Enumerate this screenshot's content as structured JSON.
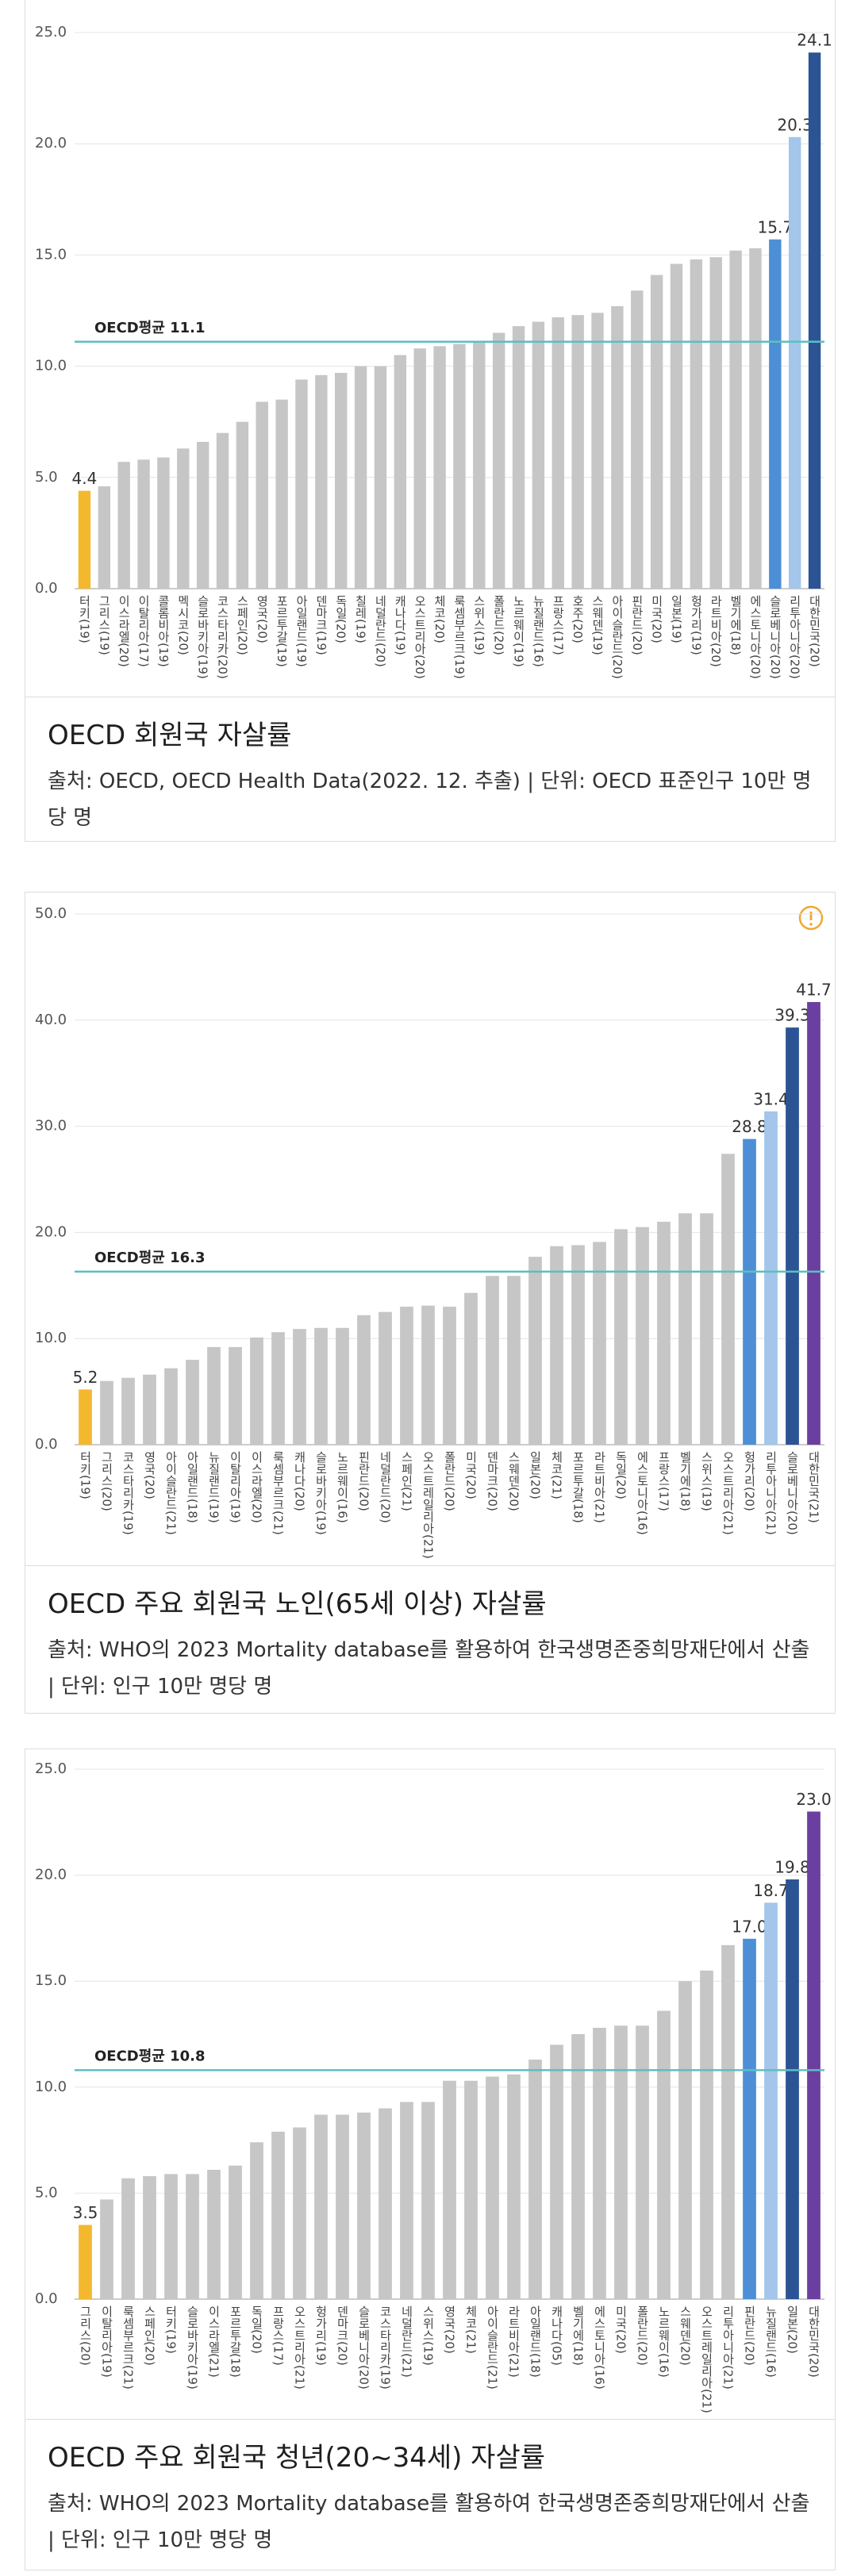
{
  "chart_data": [
    {
      "type": "bar",
      "title": "OECD 회원국 자살률",
      "source": "출처: OECD, OECD Health Data(2022. 12. 추출) | 단위: OECD 표준인구 10만 명당 명",
      "categories": [
        "터키(19)",
        "그리스(19)",
        "이스라엘(20)",
        "이탈리아(17)",
        "콜롬비아(19)",
        "멕시코(20)",
        "슬로바키아(19)",
        "코스타리카(20)",
        "스페인(20)",
        "영국(20)",
        "포르투갈(19)",
        "아일랜드(19)",
        "덴마크(19)",
        "독일(20)",
        "칠레(19)",
        "네덜란드(20)",
        "캐나다(19)",
        "오스트리아(20)",
        "체코(20)",
        "룩셈부르크(19)",
        "스위스(19)",
        "폴란드(20)",
        "노르웨이(19)",
        "뉴질랜드(16)",
        "프랑스(17)",
        "호주(20)",
        "스웨덴(19)",
        "아이슬란드(20)",
        "핀란드(20)",
        "미국(20)",
        "일본(19)",
        "헝가리(19)",
        "라트비아(20)",
        "벨기에(18)",
        "에스토니아(20)",
        "슬로베니아(20)",
        "리투아니아(20)",
        "대한민국(20)"
      ],
      "values": [
        4.4,
        4.6,
        5.7,
        5.8,
        5.9,
        6.3,
        6.6,
        7.0,
        7.5,
        8.4,
        8.5,
        9.4,
        9.6,
        9.7,
        10.0,
        10.0,
        10.5,
        10.8,
        10.9,
        11.0,
        11.1,
        11.5,
        11.8,
        12.0,
        12.2,
        12.3,
        12.4,
        12.7,
        13.4,
        14.1,
        14.6,
        14.8,
        14.9,
        15.2,
        15.3,
        15.7,
        20.3,
        24.1
      ],
      "value_labels": [
        "4.4",
        null,
        null,
        null,
        null,
        null,
        null,
        null,
        null,
        null,
        null,
        null,
        null,
        null,
        null,
        null,
        null,
        null,
        null,
        null,
        null,
        null,
        null,
        null,
        null,
        null,
        null,
        null,
        null,
        null,
        null,
        null,
        null,
        null,
        null,
        "15.7",
        "20.3",
        "24.1"
      ],
      "colors": [
        "#f4b82f",
        "#c6c6c6",
        "#c6c6c6",
        "#c6c6c6",
        "#c6c6c6",
        "#c6c6c6",
        "#c6c6c6",
        "#c6c6c6",
        "#c6c6c6",
        "#c6c6c6",
        "#c6c6c6",
        "#c6c6c6",
        "#c6c6c6",
        "#c6c6c6",
        "#c6c6c6",
        "#c6c6c6",
        "#c6c6c6",
        "#c6c6c6",
        "#c6c6c6",
        "#c6c6c6",
        "#c6c6c6",
        "#c6c6c6",
        "#c6c6c6",
        "#c6c6c6",
        "#c6c6c6",
        "#c6c6c6",
        "#c6c6c6",
        "#c6c6c6",
        "#c6c6c6",
        "#c6c6c6",
        "#c6c6c6",
        "#c6c6c6",
        "#c6c6c6",
        "#c6c6c6",
        "#c6c6c6",
        "#4d8fd6",
        "#a3c6ea",
        "#2c5494"
      ],
      "average": {
        "label": "OECD평균 11.1",
        "value": 11.1
      },
      "ylim": [
        0,
        25
      ],
      "yticks": [
        {
          "value": 0,
          "label": "0.0"
        },
        {
          "value": 5,
          "label": "5.0"
        },
        {
          "value": 10,
          "label": "10.0"
        },
        {
          "value": 15,
          "label": "15.0"
        },
        {
          "value": 20,
          "label": "20.0"
        },
        {
          "value": 25,
          "label": "25.0"
        }
      ],
      "grid": true
    },
    {
      "type": "bar",
      "title": "OECD 주요 회원국 노인(65세 이상) 자살률",
      "source": "출처: WHO의 2023 Mortality database를 활용하여 한국생명존중희망재단에서 산출 | 단위: 인구 10만 명당 명",
      "categories": [
        "터키(19)",
        "그리스(20)",
        "코스타리카(19)",
        "영국(20)",
        "아이슬란드(21)",
        "아일랜드(18)",
        "뉴질랜드(19)",
        "이탈리아(19)",
        "이스라엘(20)",
        "룩셈부르크(21)",
        "캐나다(20)",
        "슬로바키아(19)",
        "노르웨이(16)",
        "핀란드(20)",
        "네덜란드(20)",
        "스페인(21)",
        "오스트레일리아(21)",
        "폴란드(20)",
        "미국(20)",
        "덴마크(20)",
        "스웨덴(20)",
        "일본(20)",
        "체코(21)",
        "포르투갈(18)",
        "라트비아(21)",
        "독일(20)",
        "에스토니아(16)",
        "프랑스(17)",
        "벨기에(18)",
        "스위스(19)",
        "오스트리아(21)",
        "헝가리(20)",
        "리투아니아(21)",
        "슬로베니아(20)",
        "대한민국(21)"
      ],
      "values": [
        5.2,
        6.0,
        6.3,
        6.6,
        7.2,
        8.0,
        9.2,
        9.2,
        10.1,
        10.6,
        10.9,
        11.0,
        11.0,
        12.2,
        12.5,
        13.0,
        13.1,
        13.0,
        14.3,
        15.9,
        15.9,
        17.7,
        18.7,
        18.8,
        19.1,
        20.3,
        20.5,
        21.0,
        21.8,
        21.8,
        27.4,
        28.8,
        31.4,
        39.3,
        41.7
      ],
      "value_labels": [
        "5.2",
        null,
        null,
        null,
        null,
        null,
        null,
        null,
        null,
        null,
        null,
        null,
        null,
        null,
        null,
        null,
        null,
        null,
        null,
        null,
        null,
        null,
        null,
        null,
        null,
        null,
        null,
        null,
        null,
        null,
        null,
        "28.8",
        "31.4",
        "39.3",
        "41.7"
      ],
      "colors": [
        "#f4b82f",
        "#c6c6c6",
        "#c6c6c6",
        "#c6c6c6",
        "#c6c6c6",
        "#c6c6c6",
        "#c6c6c6",
        "#c6c6c6",
        "#c6c6c6",
        "#c6c6c6",
        "#c6c6c6",
        "#c6c6c6",
        "#c6c6c6",
        "#c6c6c6",
        "#c6c6c6",
        "#c6c6c6",
        "#c6c6c6",
        "#c6c6c6",
        "#c6c6c6",
        "#c6c6c6",
        "#c6c6c6",
        "#c6c6c6",
        "#c6c6c6",
        "#c6c6c6",
        "#c6c6c6",
        "#c6c6c6",
        "#c6c6c6",
        "#c6c6c6",
        "#c6c6c6",
        "#c6c6c6",
        "#c6c6c6",
        "#4d8fd6",
        "#a3c6ea",
        "#2c5494",
        "#6b3fa0"
      ],
      "average": {
        "label": "OECD평균 16.3",
        "value": 16.3
      },
      "ylim": [
        0,
        50
      ],
      "yticks": [
        {
          "value": 0,
          "label": "0.0"
        },
        {
          "value": 10,
          "label": "10.0"
        },
        {
          "value": 20,
          "label": "20.0"
        },
        {
          "value": 30,
          "label": "30.0"
        },
        {
          "value": 40,
          "label": "40.0"
        },
        {
          "value": 50,
          "label": "50.0"
        }
      ],
      "grid": true
    },
    {
      "type": "bar",
      "title": "OECD 주요 회원국 청년(20~34세) 자살률",
      "source": "출처: WHO의 2023 Mortality database를 활용하여 한국생명존중희망재단에서 산출 | 단위: 인구 10만 명당 명",
      "categories": [
        "그리스(20)",
        "이탈리아(19)",
        "룩셈부르크(21)",
        "스페인(20)",
        "터키(19)",
        "슬로바키아(19)",
        "이스라엘(21)",
        "포르투갈(18)",
        "독일(20)",
        "프랑스(17)",
        "오스트리아(21)",
        "헝가리(19)",
        "덴마크(20)",
        "슬로베니아(20)",
        "코스타리카(19)",
        "네덜란드(21)",
        "스위스(19)",
        "영국(20)",
        "체코(21)",
        "아이슬란드(21)",
        "라트비아(21)",
        "아일랜드(18)",
        "캐나다(05)",
        "벨기에(18)",
        "에스토니아(16)",
        "미국(20)",
        "폴란드(20)",
        "노르웨이(16)",
        "스웨덴(20)",
        "오스트레일리아(21)",
        "리투아니아(21)",
        "핀란드(20)",
        "뉴질랜드(16)",
        "일본(20)",
        "대한민국(20)"
      ],
      "values": [
        3.5,
        4.7,
        5.7,
        5.8,
        5.9,
        5.9,
        6.1,
        6.3,
        7.4,
        7.9,
        8.1,
        8.7,
        8.7,
        8.8,
        9.0,
        9.3,
        9.3,
        10.3,
        10.3,
        10.5,
        10.6,
        11.3,
        12.0,
        12.5,
        12.8,
        12.9,
        12.9,
        13.6,
        15.0,
        15.5,
        16.7,
        17.0,
        18.7,
        19.8,
        23.0
      ],
      "value_labels": [
        "3.5",
        null,
        null,
        null,
        null,
        null,
        null,
        null,
        null,
        null,
        null,
        null,
        null,
        null,
        null,
        null,
        null,
        null,
        null,
        null,
        null,
        null,
        null,
        null,
        null,
        null,
        null,
        null,
        null,
        null,
        null,
        "17.0",
        "18.7",
        "19.8",
        "23.0"
      ],
      "colors": [
        "#f4b82f",
        "#c6c6c6",
        "#c6c6c6",
        "#c6c6c6",
        "#c6c6c6",
        "#c6c6c6",
        "#c6c6c6",
        "#c6c6c6",
        "#c6c6c6",
        "#c6c6c6",
        "#c6c6c6",
        "#c6c6c6",
        "#c6c6c6",
        "#c6c6c6",
        "#c6c6c6",
        "#c6c6c6",
        "#c6c6c6",
        "#c6c6c6",
        "#c6c6c6",
        "#c6c6c6",
        "#c6c6c6",
        "#c6c6c6",
        "#c6c6c6",
        "#c6c6c6",
        "#c6c6c6",
        "#c6c6c6",
        "#c6c6c6",
        "#c6c6c6",
        "#c6c6c6",
        "#c6c6c6",
        "#c6c6c6",
        "#4d8fd6",
        "#a3c6ea",
        "#2c5494",
        "#6b3fa0"
      ],
      "average": {
        "label": "OECD평균 10.8",
        "value": 10.8
      },
      "ylim": [
        0,
        25
      ],
      "yticks": [
        {
          "value": 0,
          "label": "0.0"
        },
        {
          "value": 5,
          "label": "5.0"
        },
        {
          "value": 10,
          "label": "10.0"
        },
        {
          "value": 15,
          "label": "15.0"
        },
        {
          "value": 20,
          "label": "20.0"
        },
        {
          "value": 25,
          "label": "25.0"
        }
      ],
      "grid": true
    }
  ]
}
